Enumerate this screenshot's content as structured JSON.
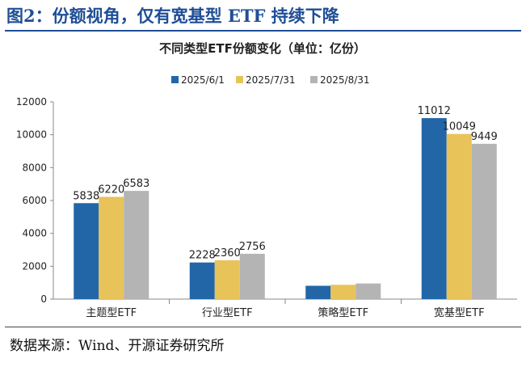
{
  "figure_title": "图2：份额视角，仅有宽基型 ETF 持续下降",
  "source": "数据来源：Wind、开源证券研究所",
  "chart_data": {
    "type": "bar",
    "title": "不同类型ETF份额变化（单位：亿份）",
    "categories": [
      "主题型ETF",
      "行业型ETF",
      "策略型ETF",
      "宽基型ETF"
    ],
    "series": [
      {
        "name": "2025/6/1",
        "color": "#2266a8",
        "values": [
          5838,
          2228,
          810,
          11012
        ],
        "labels": [
          "5838",
          "2228",
          "",
          "11012"
        ]
      },
      {
        "name": "2025/7/31",
        "color": "#e8c35a",
        "values": [
          6220,
          2360,
          870,
          10049
        ],
        "labels": [
          "6220",
          "2360",
          "",
          "10049"
        ]
      },
      {
        "name": "2025/8/31",
        "color": "#b4b4b4",
        "values": [
          6583,
          2756,
          950,
          9449
        ],
        "labels": [
          "6583",
          "2756",
          "",
          "9449"
        ]
      }
    ],
    "ylim": [
      0,
      12000
    ],
    "yticks": [
      0,
      2000,
      4000,
      6000,
      8000,
      10000,
      12000
    ],
    "legend": "top",
    "grid": false
  }
}
